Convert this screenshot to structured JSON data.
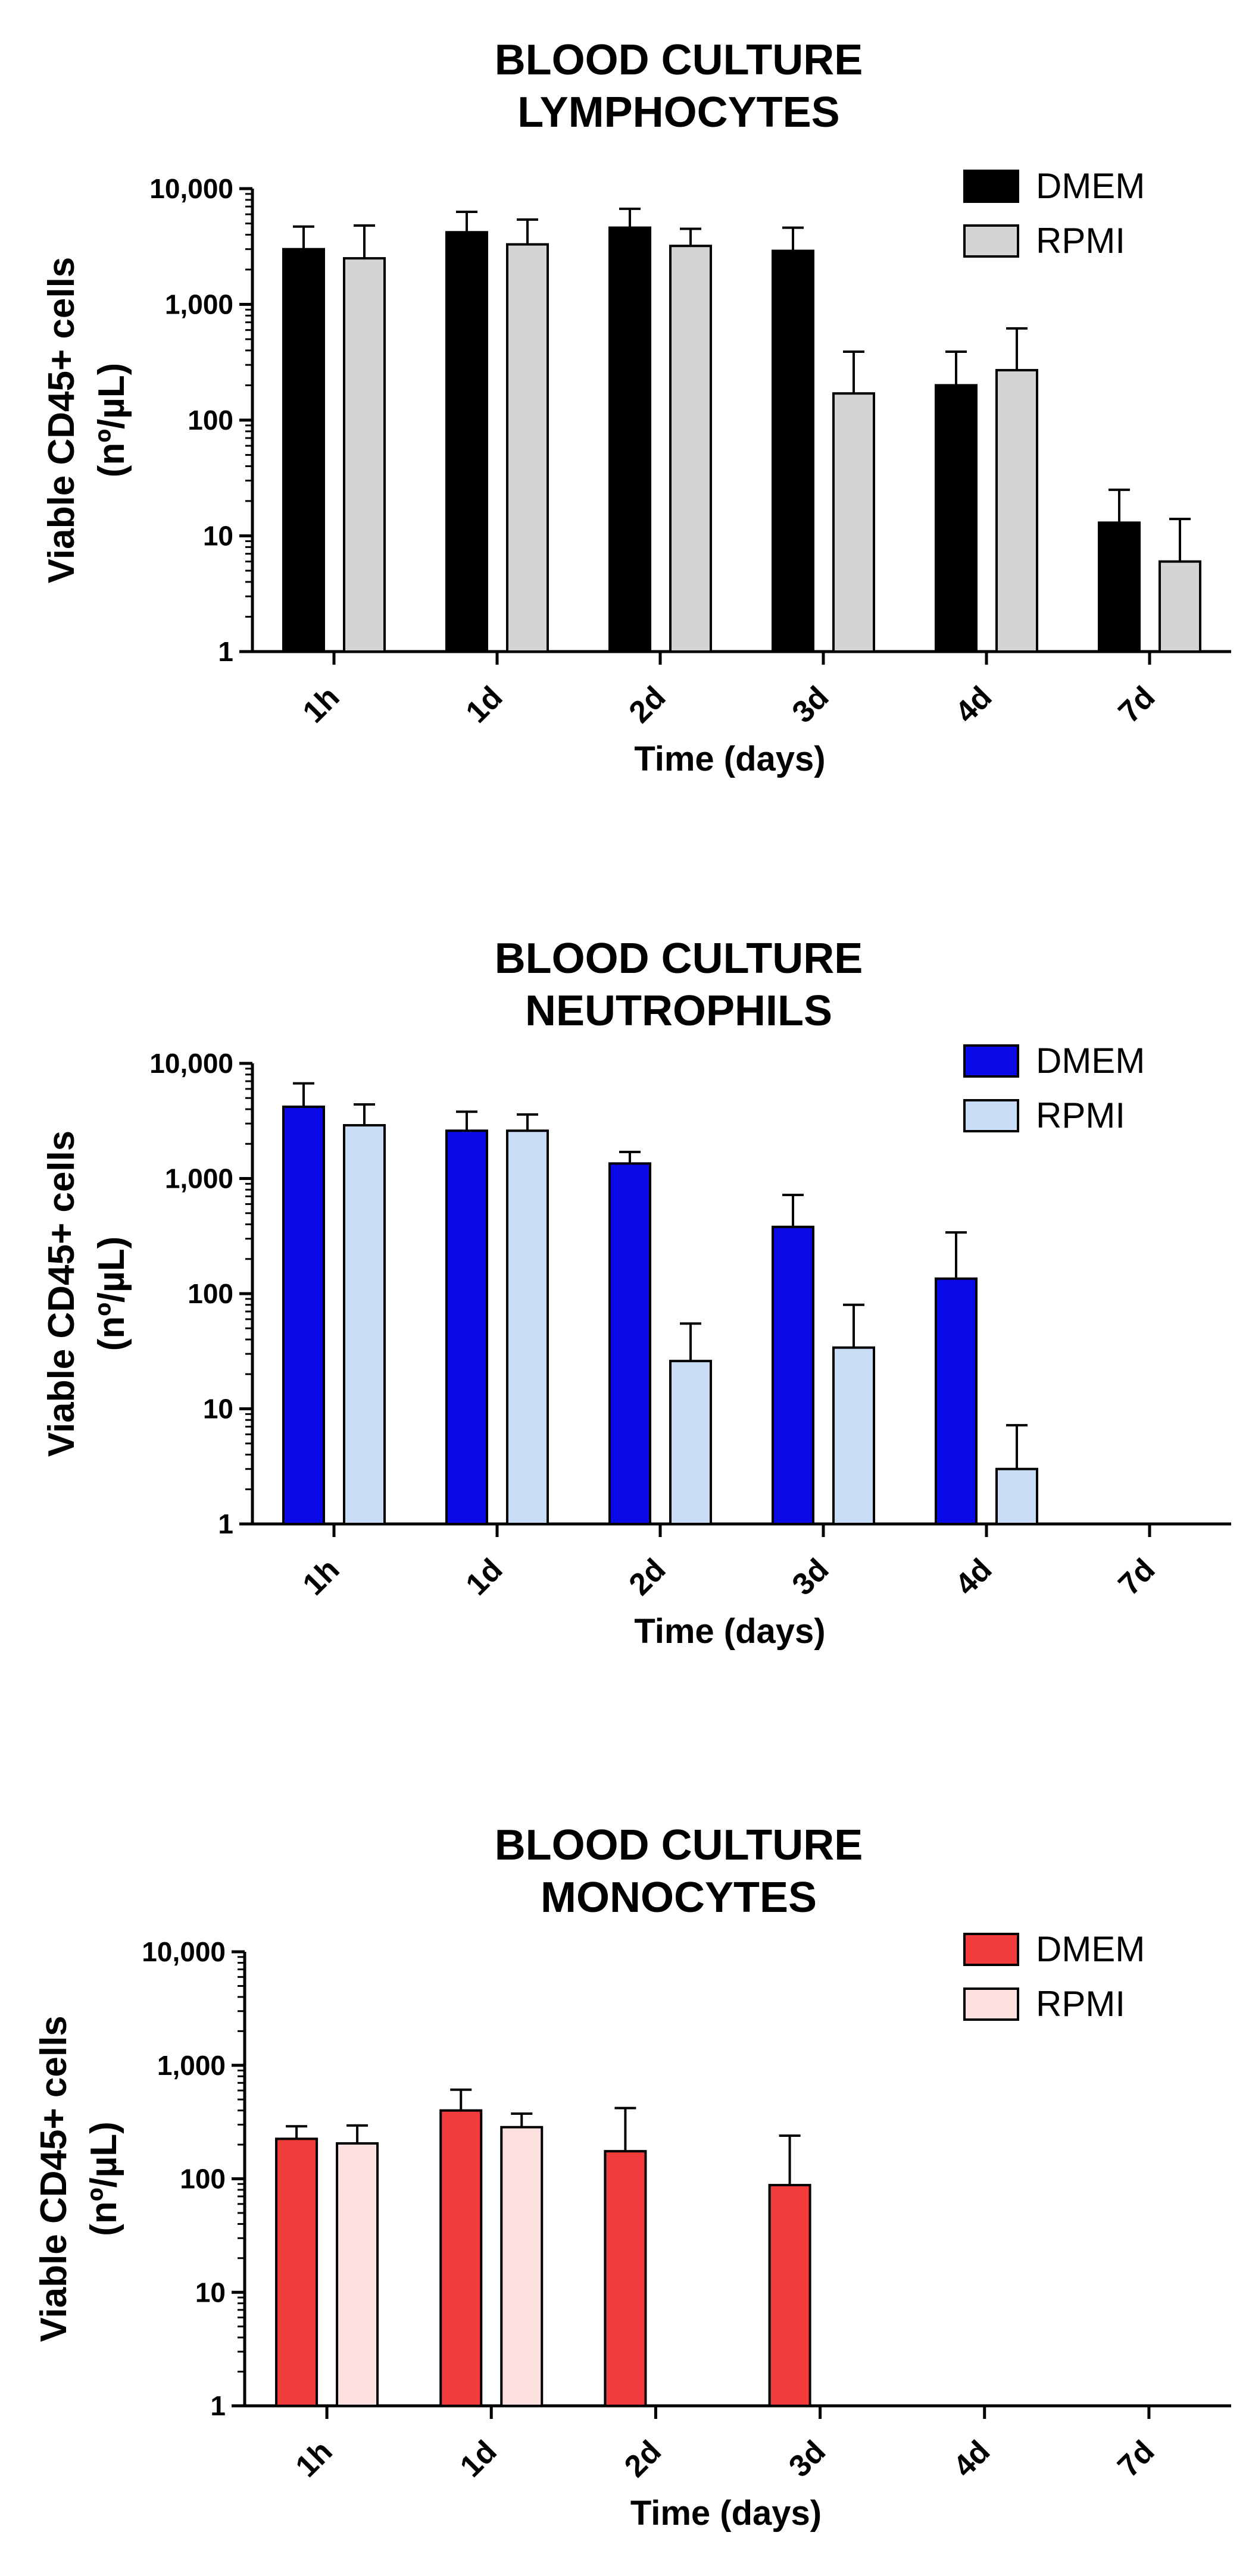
{
  "chart_data": [
    {
      "type": "bar",
      "title": [
        "BLOOD CULTURE",
        "LYMPHOCYTES"
      ],
      "xlabel": "Time (days)",
      "ylabel": [
        "Viable CD45+ cells",
        "(nº/µL)"
      ],
      "yscale": "log",
      "ylim": [
        1,
        10000
      ],
      "ytick_values": [
        1,
        10,
        100,
        1000,
        10000
      ],
      "ytick_labels": [
        "1",
        "10",
        "100",
        "1,000",
        "10,000"
      ],
      "categories": [
        "1h",
        "1d",
        "2d",
        "3d",
        "4d",
        "7d"
      ],
      "legend_position": "top-right",
      "series": [
        {
          "name": "DMEM",
          "color": "#000000",
          "values": [
            3000,
            4200,
            4600,
            2900,
            200,
            13
          ],
          "errors": [
            4700,
            6300,
            6700,
            4600,
            390,
            25
          ]
        },
        {
          "name": "RPMI",
          "color": "#d4d4d4",
          "values": [
            2500,
            3300,
            3200,
            170,
            270,
            6
          ],
          "errors": [
            4800,
            5400,
            4500,
            390,
            620,
            14
          ]
        }
      ]
    },
    {
      "type": "bar",
      "title": [
        "BLOOD CULTURE",
        "NEUTROPHILS"
      ],
      "xlabel": "Time (days)",
      "ylabel": [
        "Viable CD45+ cells",
        "(nº/µL)"
      ],
      "yscale": "log",
      "ylim": [
        1,
        10000
      ],
      "ytick_values": [
        1,
        10,
        100,
        1000,
        10000
      ],
      "ytick_labels": [
        "1",
        "10",
        "100",
        "1,000",
        "10,000"
      ],
      "categories": [
        "1h",
        "1d",
        "2d",
        "3d",
        "4d",
        "7d"
      ],
      "legend_position": "top-right",
      "series": [
        {
          "name": "DMEM",
          "color": "#0a0ae6",
          "values": [
            4200,
            2600,
            1350,
            380,
            135,
            null
          ],
          "errors": [
            6700,
            3800,
            1700,
            720,
            340,
            null
          ]
        },
        {
          "name": "RPMI",
          "color": "#c8dcf5",
          "values": [
            2900,
            2600,
            26,
            34,
            3,
            null
          ],
          "errors": [
            4400,
            3600,
            55,
            80,
            7.2,
            null
          ]
        }
      ]
    },
    {
      "type": "bar",
      "title": [
        "BLOOD CULTURE",
        "MONOCYTES"
      ],
      "xlabel": "Time (days)",
      "ylabel": [
        "Viable CD45+ cells",
        "(nº/µL)"
      ],
      "yscale": "log",
      "ylim": [
        1,
        10000
      ],
      "ytick_values": [
        1,
        10,
        100,
        1000,
        10000
      ],
      "ytick_labels": [
        "1",
        "10",
        "100",
        "1,000",
        "10,000"
      ],
      "categories": [
        "1h",
        "1d",
        "2d",
        "3d",
        "4d",
        "7d"
      ],
      "legend_position": "top-right",
      "series": [
        {
          "name": "DMEM",
          "color": "#f23c3c",
          "values": [
            225,
            400,
            175,
            88,
            null,
            null
          ],
          "errors": [
            290,
            610,
            420,
            240,
            null,
            null
          ]
        },
        {
          "name": "RPMI",
          "color": "#fde0e0",
          "values": [
            205,
            285,
            null,
            null,
            null,
            null
          ],
          "errors": [
            295,
            375,
            null,
            null,
            null,
            null
          ]
        }
      ]
    }
  ]
}
